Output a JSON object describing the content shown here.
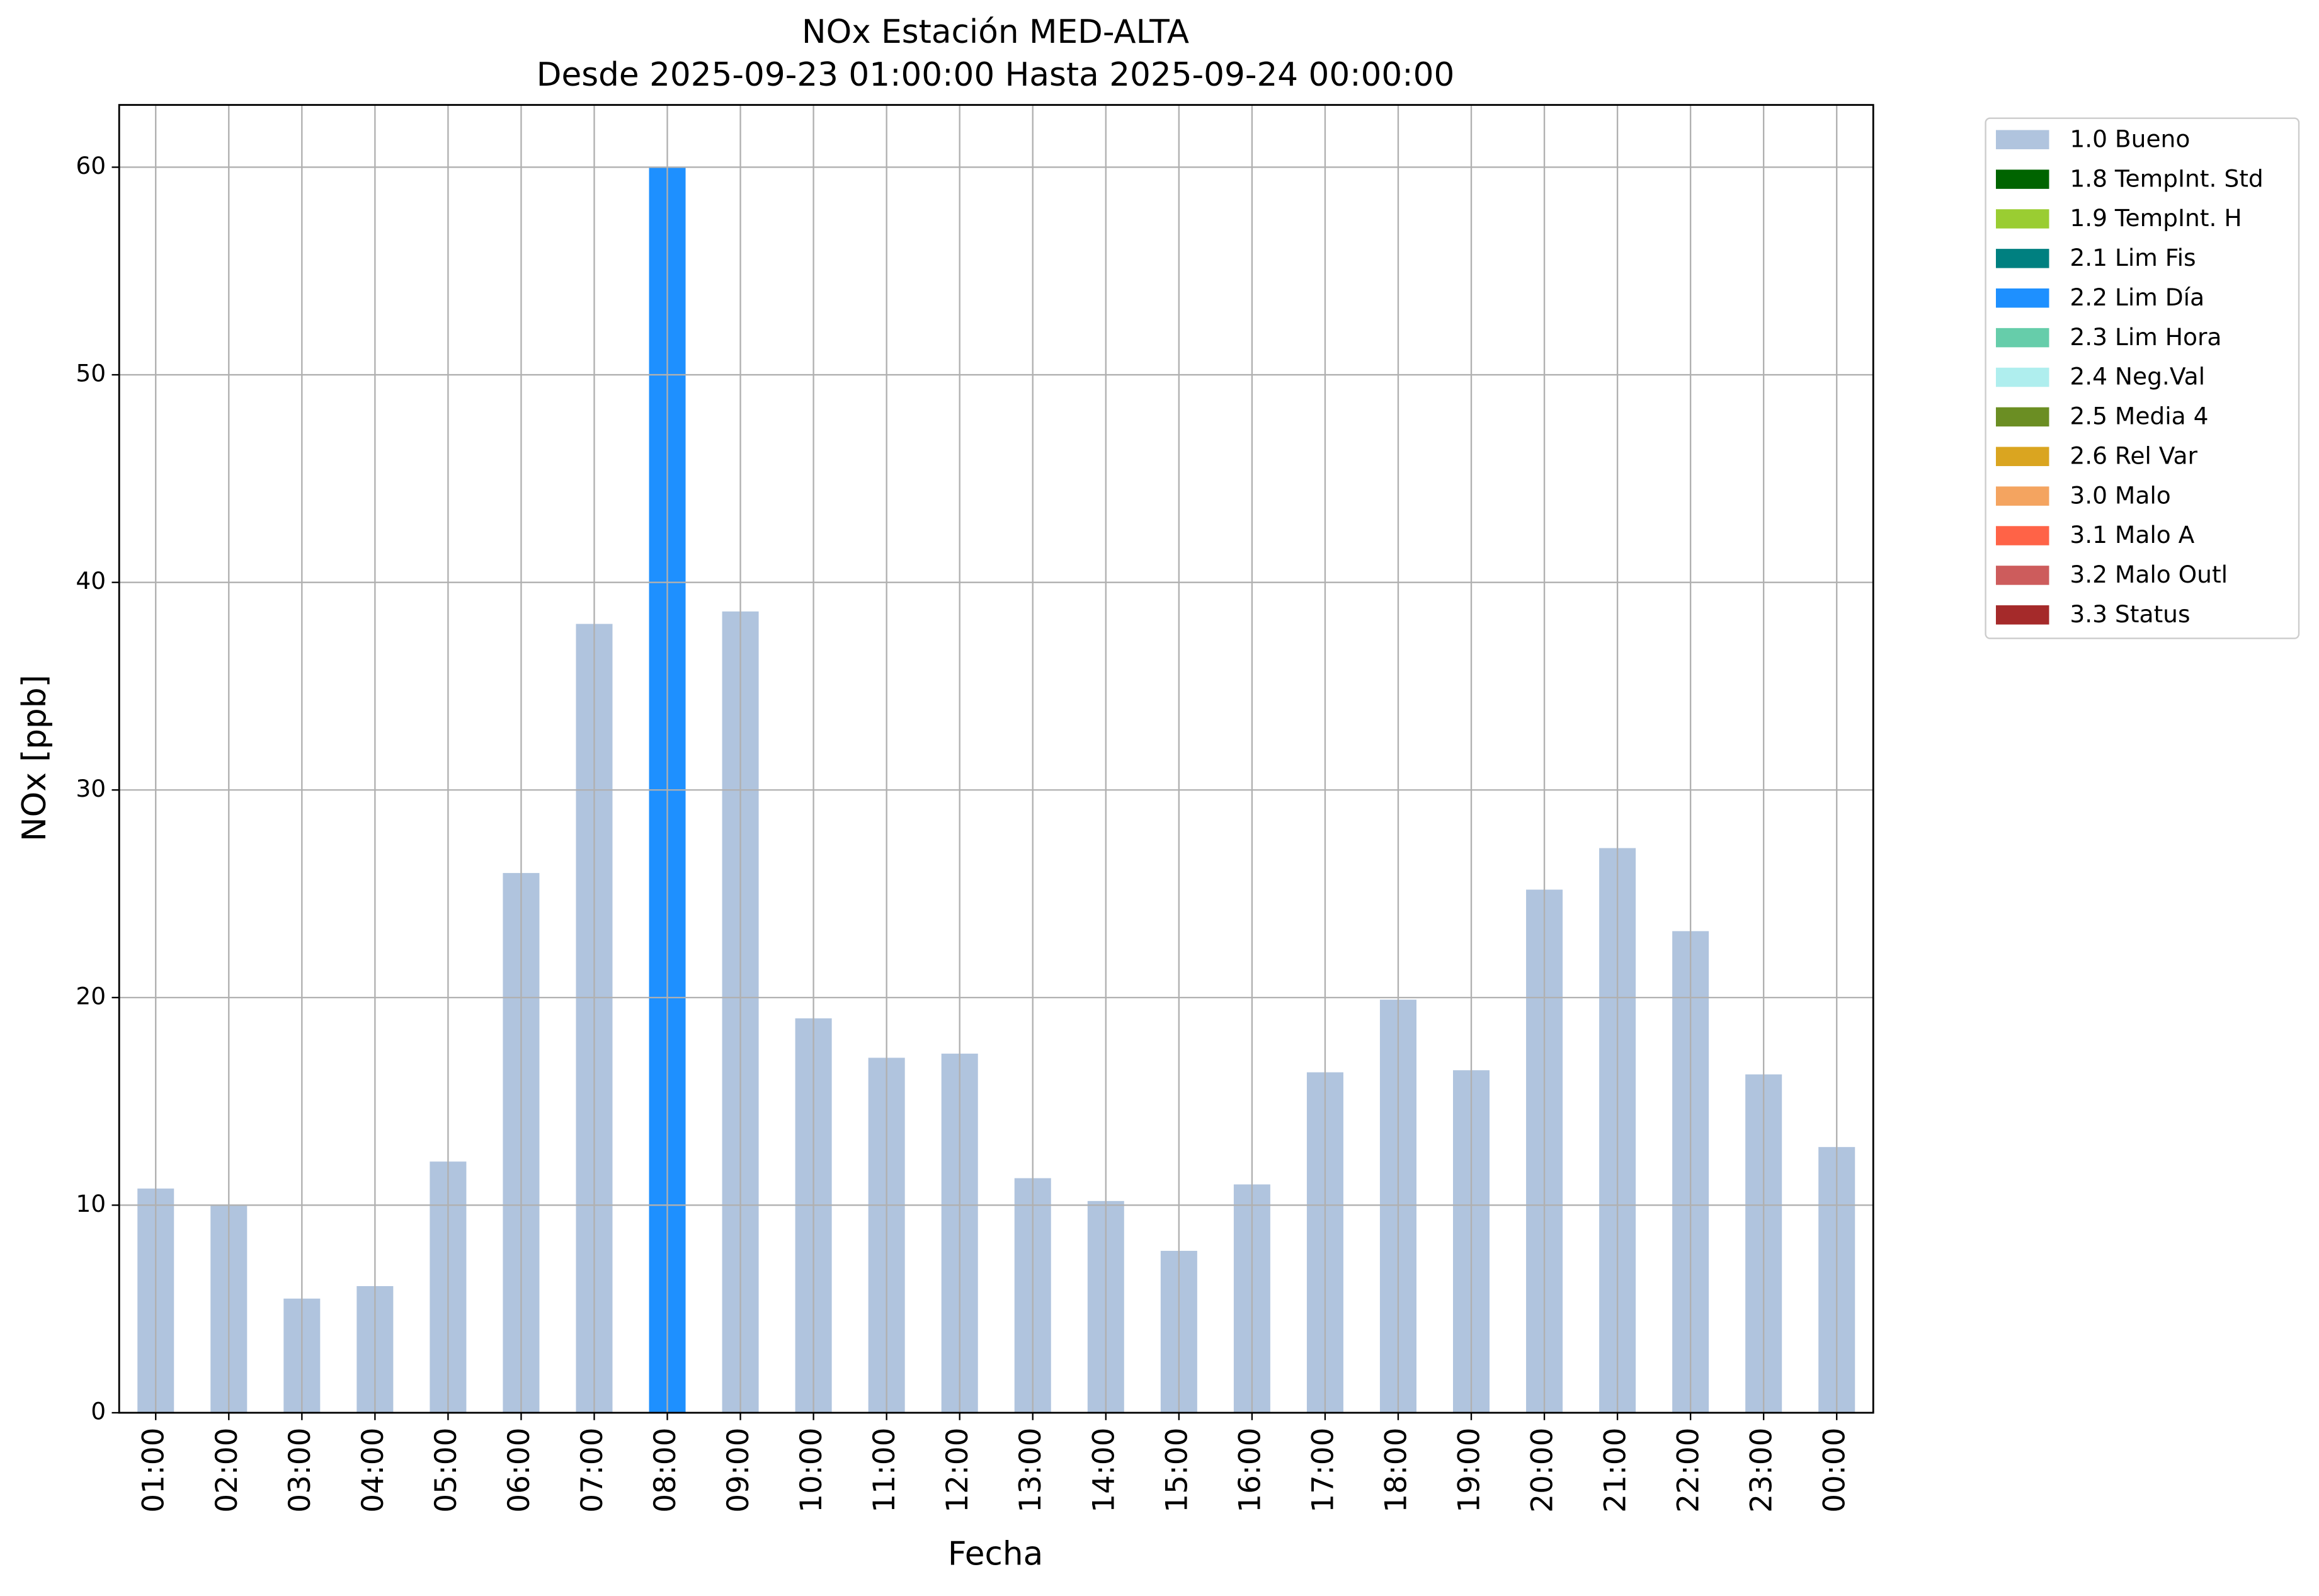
{
  "chart_data": {
    "type": "stacked_bar",
    "title": "NOx Estación MED-ALTA",
    "subtitle": "Desde 2025-09-23 01:00:00 Hasta 2025-09-24 00:00:00",
    "x_label": "Fecha",
    "y_label": "NOx [ppb]",
    "categories": [
      "01:00",
      "02:00",
      "03:00",
      "04:00",
      "05:00",
      "06:00",
      "07:00",
      "08:00",
      "09:00",
      "10:00",
      "11:00",
      "12:00",
      "13:00",
      "14:00",
      "15:00",
      "16:00",
      "17:00",
      "18:00",
      "19:00",
      "20:00",
      "21:00",
      "22:00",
      "23:00",
      "00:00"
    ],
    "ylim": [
      0,
      63
    ],
    "yticks": [
      0,
      10,
      20,
      30,
      40,
      50,
      60
    ],
    "grid": true,
    "legend": "outside-right",
    "series": [
      {
        "name": "1.0 Bueno",
        "color": "#b0c4de",
        "values": [
          10.8,
          10.0,
          5.5,
          6.1,
          12.1,
          26.0,
          38.0,
          null,
          38.6,
          19.0,
          17.1,
          17.3,
          11.3,
          10.2,
          7.8,
          11.0,
          16.4,
          19.9,
          16.5,
          25.2,
          27.2,
          23.2,
          16.3,
          12.8
        ]
      },
      {
        "name": "1.8 TempInt. Std",
        "color": "#006400",
        "values": [
          null,
          null,
          null,
          null,
          null,
          null,
          null,
          null,
          null,
          null,
          null,
          null,
          null,
          null,
          null,
          null,
          null,
          null,
          null,
          null,
          null,
          null,
          null,
          null
        ]
      },
      {
        "name": "1.9 TempInt. H",
        "color": "#9acd32",
        "values": [
          null,
          null,
          null,
          null,
          null,
          null,
          null,
          null,
          null,
          null,
          null,
          null,
          null,
          null,
          null,
          null,
          null,
          null,
          null,
          null,
          null,
          null,
          null,
          null
        ]
      },
      {
        "name": "2.1 Lim Fis",
        "color": "#008080",
        "values": [
          null,
          null,
          null,
          null,
          null,
          null,
          null,
          null,
          null,
          null,
          null,
          null,
          null,
          null,
          null,
          null,
          null,
          null,
          null,
          null,
          null,
          null,
          null,
          null
        ]
      },
      {
        "name": "2.2 Lim Día",
        "color": "#1e90ff",
        "values": [
          null,
          null,
          null,
          null,
          null,
          null,
          null,
          60.0,
          null,
          null,
          null,
          null,
          null,
          null,
          null,
          null,
          null,
          null,
          null,
          null,
          null,
          null,
          null,
          null
        ]
      },
      {
        "name": "2.3 Lim Hora",
        "color": "#66cdaa",
        "values": [
          null,
          null,
          null,
          null,
          null,
          null,
          null,
          null,
          null,
          null,
          null,
          null,
          null,
          null,
          null,
          null,
          null,
          null,
          null,
          null,
          null,
          null,
          null,
          null
        ]
      },
      {
        "name": "2.4 Neg.Val",
        "color": "#afeeee",
        "values": [
          null,
          null,
          null,
          null,
          null,
          null,
          null,
          null,
          null,
          null,
          null,
          null,
          null,
          null,
          null,
          null,
          null,
          null,
          null,
          null,
          null,
          null,
          null,
          null
        ]
      },
      {
        "name": "2.5 Media 4",
        "color": "#6b8e23",
        "values": [
          null,
          null,
          null,
          null,
          null,
          null,
          null,
          null,
          null,
          null,
          null,
          null,
          null,
          null,
          null,
          null,
          null,
          null,
          null,
          null,
          null,
          null,
          null,
          null
        ]
      },
      {
        "name": "2.6 Rel Var",
        "color": "#daa520",
        "values": [
          null,
          null,
          null,
          null,
          null,
          null,
          null,
          null,
          null,
          null,
          null,
          null,
          null,
          null,
          null,
          null,
          null,
          null,
          null,
          null,
          null,
          null,
          null,
          null
        ]
      },
      {
        "name": "3.0 Malo",
        "color": "#f4a460",
        "values": [
          null,
          null,
          null,
          null,
          null,
          null,
          null,
          null,
          null,
          null,
          null,
          null,
          null,
          null,
          null,
          null,
          null,
          null,
          null,
          null,
          null,
          null,
          null,
          null
        ]
      },
      {
        "name": "3.1 Malo A",
        "color": "#ff6347",
        "values": [
          null,
          null,
          null,
          null,
          null,
          null,
          null,
          null,
          null,
          null,
          null,
          null,
          null,
          null,
          null,
          null,
          null,
          null,
          null,
          null,
          null,
          null,
          null,
          null
        ]
      },
      {
        "name": "3.2 Malo Outl",
        "color": "#cd5c5c",
        "values": [
          null,
          null,
          null,
          null,
          null,
          null,
          null,
          null,
          null,
          null,
          null,
          null,
          null,
          null,
          null,
          null,
          null,
          null,
          null,
          null,
          null,
          null,
          null,
          null
        ]
      },
      {
        "name": "3.3 Status",
        "color": "#a52a2a",
        "values": [
          null,
          null,
          null,
          null,
          null,
          null,
          null,
          null,
          null,
          null,
          null,
          null,
          null,
          null,
          null,
          null,
          null,
          null,
          null,
          null,
          null,
          null,
          null,
          null
        ]
      }
    ]
  }
}
